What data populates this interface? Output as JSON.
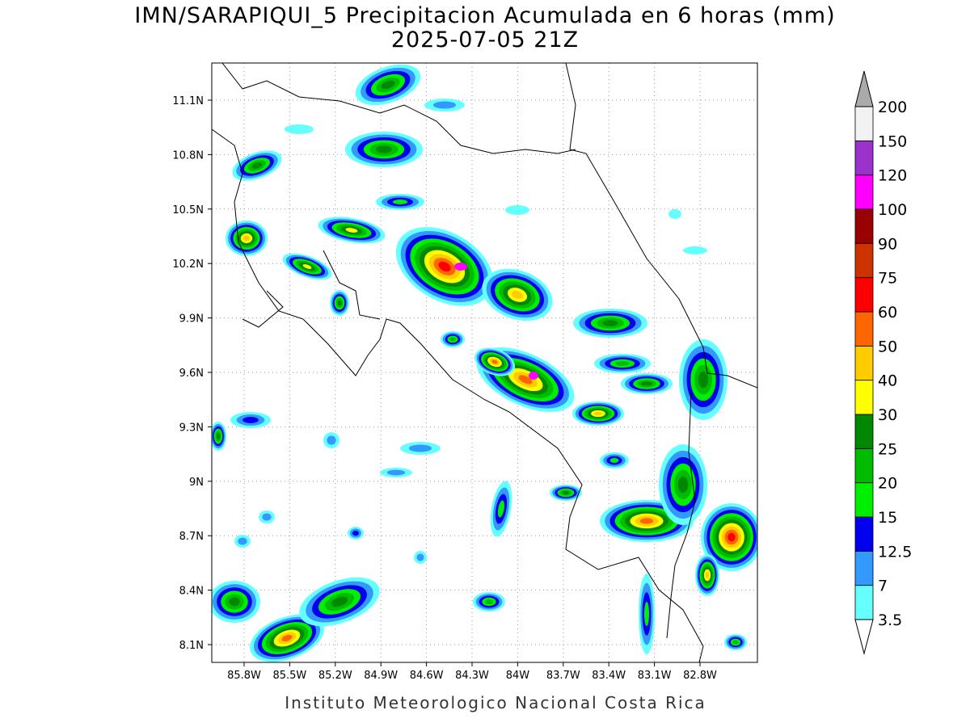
{
  "header": {
    "title": "IMN/SARAPIQUI_5 Precipitacion Acumulada en 6 horas (mm)",
    "subtitle": "2025-07-05 21Z"
  },
  "map": {
    "lat_labels": [
      "11.1N",
      "10.8N",
      "10.5N",
      "10.2N",
      "9.9N",
      "9.6N",
      "9.3N",
      "9N",
      "8.7N",
      "8.4N",
      "8.1N"
    ],
    "lon_labels": [
      "85.8W",
      "85.5W",
      "85.2W",
      "84.9W",
      "84.6W",
      "84.3W",
      "84W",
      "83.7W",
      "83.4W",
      "83.1W",
      "82.8W"
    ]
  },
  "colorbar": {
    "levels": [
      3.5,
      7,
      12.5,
      15,
      20,
      25,
      30,
      40,
      50,
      60,
      75,
      90,
      100,
      120,
      150,
      200
    ],
    "colors": [
      "#66ffff",
      "#3399ff",
      "#0000ee",
      "#00ee00",
      "#00bb00",
      "#008800",
      "#ffff00",
      "#ffcc00",
      "#ff6600",
      "#ff0000",
      "#cc3300",
      "#990000",
      "#ff00ff",
      "#9933cc",
      "#f2f2f2"
    ],
    "under_color": "#ffffff",
    "over_color": "#aaaaaa"
  },
  "footer": "Instituto Meteorologico Nacional Costa Rica"
}
